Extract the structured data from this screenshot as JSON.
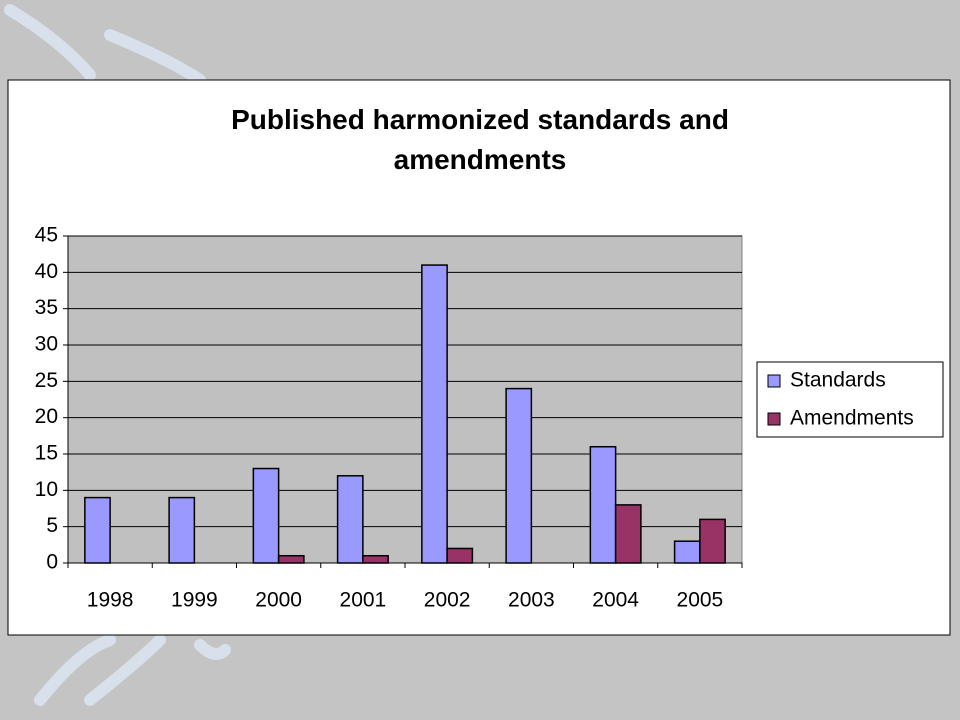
{
  "chart_data": {
    "type": "bar",
    "title": "Published harmonized standards and amendments",
    "categories": [
      "1998",
      "1999",
      "2000",
      "2001",
      "2002",
      "2003",
      "2004",
      "2005"
    ],
    "series": [
      {
        "name": "Standards",
        "color": "#9999ff",
        "values": [
          9,
          9,
          13,
          12,
          41,
          24,
          16,
          3
        ]
      },
      {
        "name": "Amendments",
        "color": "#993366",
        "values": [
          0,
          0,
          1,
          1,
          2,
          0,
          8,
          6
        ]
      }
    ],
    "ylim": [
      0,
      45
    ],
    "yticks": [
      0,
      5,
      10,
      15,
      20,
      25,
      30,
      35,
      40,
      45
    ],
    "grid": true,
    "legend": "right"
  }
}
